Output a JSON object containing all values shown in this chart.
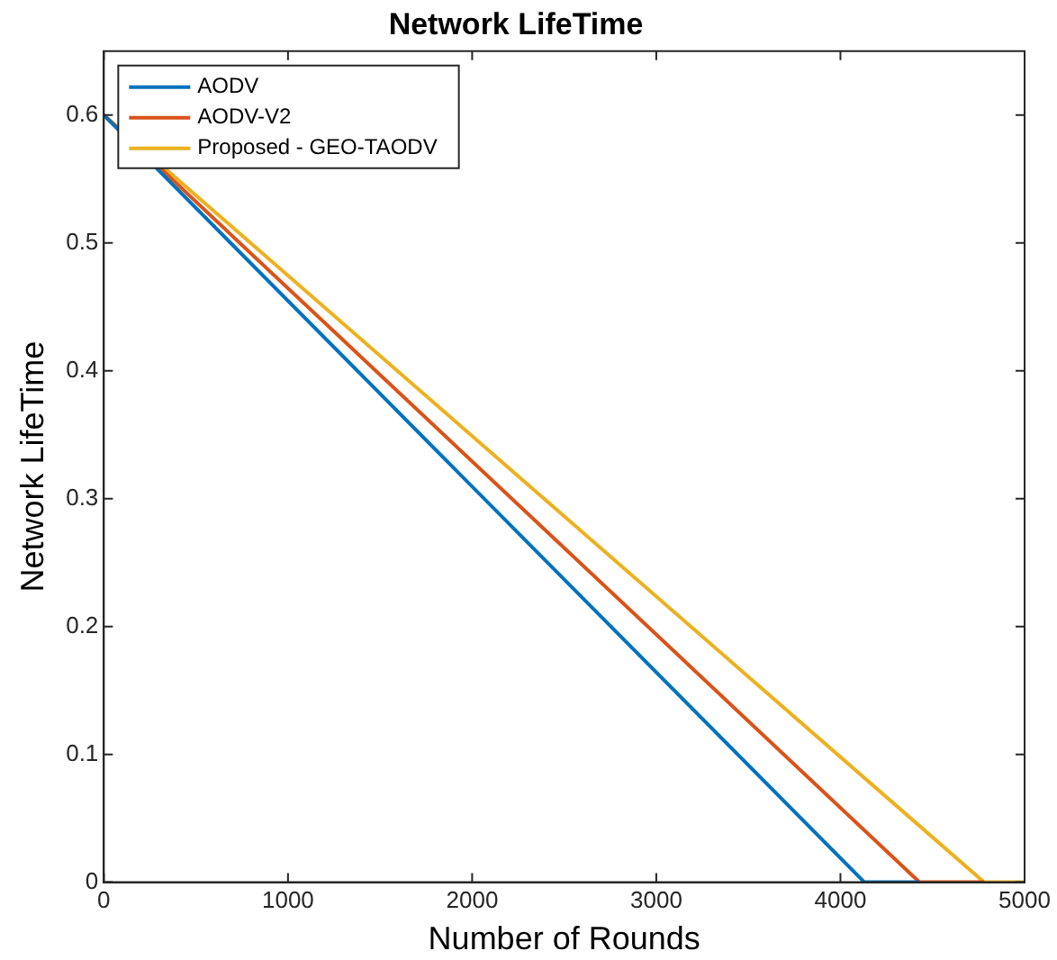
{
  "chart_data": {
    "type": "line",
    "title": "Network LifeTime",
    "xlabel": "Number of Rounds",
    "ylabel": "Network LifeTime",
    "xlim": [
      0,
      5000
    ],
    "xticks": [
      0,
      1000,
      2000,
      3000,
      4000,
      5000
    ],
    "ylim": [
      0,
      0.65
    ],
    "yticks": [
      0,
      0.1,
      0.2,
      0.3,
      0.4,
      0.5,
      0.6
    ],
    "series": [
      {
        "name": "AODV",
        "color": "#0072bd",
        "x": [
          0,
          4130,
          4430
        ],
        "values": [
          0.6,
          0,
          0
        ]
      },
      {
        "name": "AODV-V2",
        "color": "#d95319",
        "x": [
          0,
          4430,
          4780
        ],
        "values": [
          0.6,
          0,
          0
        ]
      },
      {
        "name": "Proposed - GEO-TAODV",
        "color": "#edb120",
        "x": [
          0,
          4780,
          5000
        ],
        "values": [
          0.6,
          0,
          0
        ]
      }
    ],
    "legend": "top left",
    "grid": false,
    "marker": "none",
    "line_style": "solid"
  }
}
